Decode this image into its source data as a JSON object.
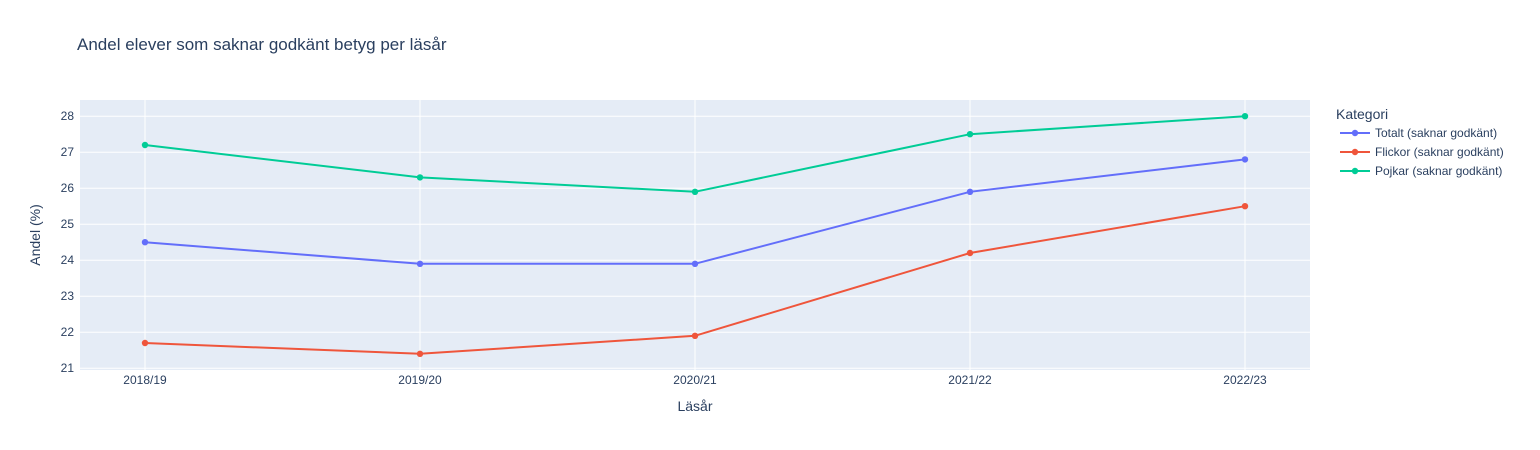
{
  "chart_data": {
    "type": "line",
    "title": "Andel elever som saknar godkänt betyg per läsår",
    "xlabel": "Läsår",
    "ylabel": "Andel (%)",
    "categories": [
      "2018/19",
      "2019/20",
      "2020/21",
      "2021/22",
      "2022/23"
    ],
    "yticks": [
      21,
      22,
      23,
      24,
      25,
      26,
      27,
      28
    ],
    "ylim": [
      20.95,
      28.45
    ],
    "grid": true,
    "legend": {
      "title": "Kategori",
      "placement": "right"
    },
    "plot_background": "#e5ecf6",
    "series": [
      {
        "name": "Totalt (saknar godkänt)",
        "color": "#636efa",
        "values": [
          24.5,
          23.9,
          23.9,
          25.9,
          26.8
        ]
      },
      {
        "name": "Flickor (saknar godkänt)",
        "color": "#ef553b",
        "values": [
          21.7,
          21.4,
          21.9,
          24.2,
          25.5
        ]
      },
      {
        "name": "Pojkar (saknar godkänt)",
        "color": "#00cc96",
        "values": [
          27.2,
          26.3,
          25.9,
          27.5,
          28.0
        ]
      }
    ]
  }
}
